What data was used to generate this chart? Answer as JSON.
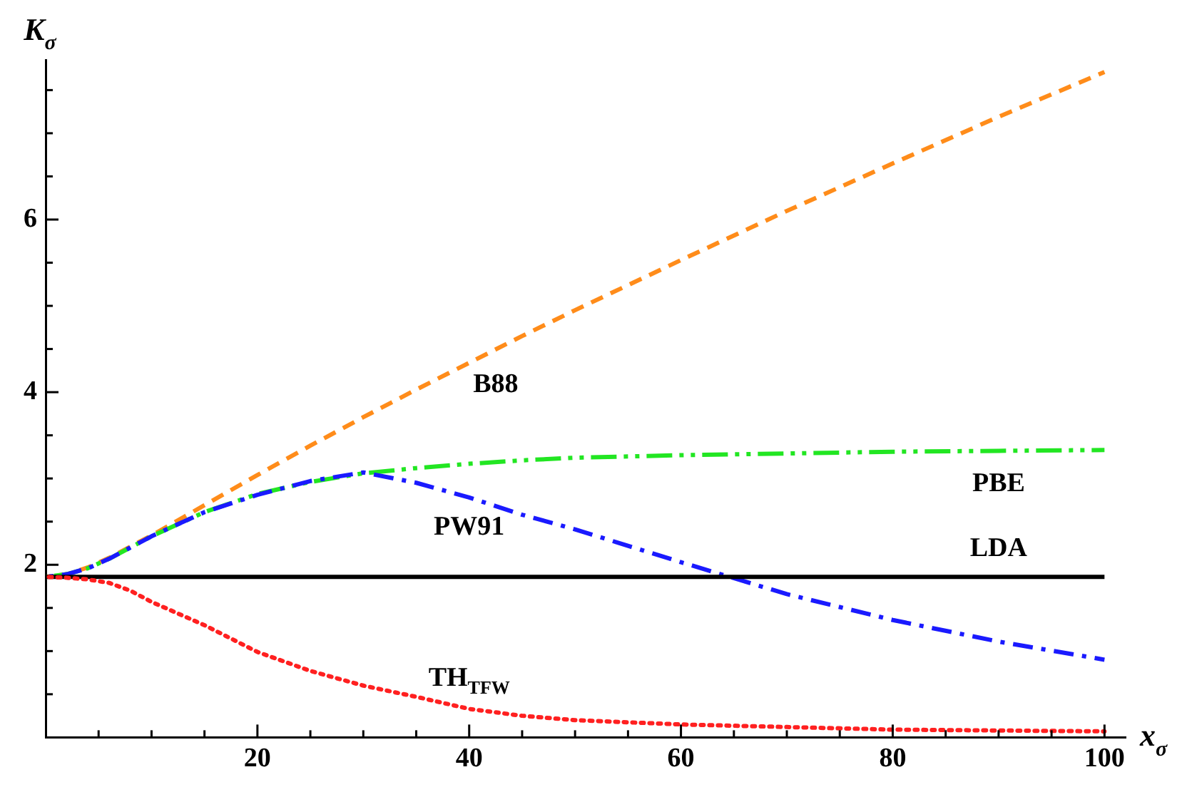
{
  "chart_data": {
    "type": "line",
    "xlabel": "x$_{σ}$",
    "ylabel": "K$_{σ}$",
    "x": [
      0,
      2,
      4,
      6,
      8,
      10,
      15,
      20,
      25,
      30,
      35,
      40,
      45,
      50,
      60,
      70,
      80,
      90,
      100
    ],
    "xlim": [
      0,
      102
    ],
    "ylim": [
      0,
      7.85
    ],
    "xticks": [
      {
        "value": 5,
        "label": null
      },
      {
        "value": 10,
        "label": null
      },
      {
        "value": 15,
        "label": null
      },
      20,
      {
        "value": 25,
        "label": null
      },
      {
        "value": 30,
        "label": null
      },
      {
        "value": 35,
        "label": null
      },
      40,
      {
        "value": 45,
        "label": null
      },
      {
        "value": 50,
        "label": null
      },
      {
        "value": 55,
        "label": null
      },
      60,
      {
        "value": 65,
        "label": null
      },
      {
        "value": 70,
        "label": null
      },
      {
        "value": 75,
        "label": null
      },
      80,
      {
        "value": 85,
        "label": null
      },
      {
        "value": 90,
        "label": null
      },
      {
        "value": 95,
        "label": null
      },
      100
    ],
    "yticks": [
      {
        "value": 0.5,
        "label": null
      },
      {
        "value": 1,
        "label": null
      },
      {
        "value": 1.5,
        "label": null
      },
      2,
      {
        "value": 2.5,
        "label": null
      },
      {
        "value": 3,
        "label": null
      },
      {
        "value": 3.5,
        "label": null
      },
      4,
      {
        "value": 4.5,
        "label": null
      },
      {
        "value": 5,
        "label": null
      },
      {
        "value": 5.5,
        "label": null
      },
      6,
      {
        "value": 6.5,
        "label": null
      },
      {
        "value": 7,
        "label": null
      },
      {
        "value": 7.5,
        "label": null
      }
    ],
    "grid": false,
    "legend": false,
    "marker": "none",
    "series": [
      {
        "name": "B88",
        "color": "#ff8c1a",
        "line_style": "dashed",
        "values": [
          1.86,
          1.89,
          1.97,
          2.08,
          2.21,
          2.34,
          2.69,
          3.04,
          3.38,
          3.71,
          4.03,
          4.34,
          4.65,
          4.95,
          5.53,
          6.1,
          6.65,
          7.19,
          7.71
        ]
      },
      {
        "name": "PBE",
        "color": "#22e622",
        "line_style": "dashed",
        "values": [
          1.86,
          1.89,
          1.96,
          2.07,
          2.2,
          2.33,
          2.61,
          2.82,
          2.96,
          3.06,
          3.12,
          3.17,
          3.21,
          3.24,
          3.27,
          3.29,
          3.31,
          3.32,
          3.33
        ]
      },
      {
        "name": "PW91",
        "color": "#1a1aff",
        "line_style": "dashed",
        "values": [
          1.86,
          1.89,
          1.96,
          2.07,
          2.2,
          2.33,
          2.61,
          2.81,
          2.97,
          3.07,
          2.95,
          2.78,
          2.58,
          2.41,
          2.03,
          1.66,
          1.36,
          1.11,
          0.9
        ]
      },
      {
        "name": "LDA",
        "color": "#000000",
        "line_style": "solid",
        "values": [
          1.86,
          1.86,
          1.86,
          1.86,
          1.86,
          1.86,
          1.86,
          1.86,
          1.86,
          1.86,
          1.86,
          1.86,
          1.86,
          1.86,
          1.86,
          1.86,
          1.86,
          1.86,
          1.86
        ]
      },
      {
        "name": "TH$_{TFW}$",
        "color": "#ff2020",
        "line_style": "dotted",
        "values": [
          1.86,
          1.85,
          1.83,
          1.79,
          1.7,
          1.57,
          1.3,
          0.99,
          0.77,
          0.6,
          0.47,
          0.33,
          0.25,
          0.2,
          0.15,
          0.12,
          0.09,
          0.08,
          0.07
        ]
      }
    ]
  }
}
